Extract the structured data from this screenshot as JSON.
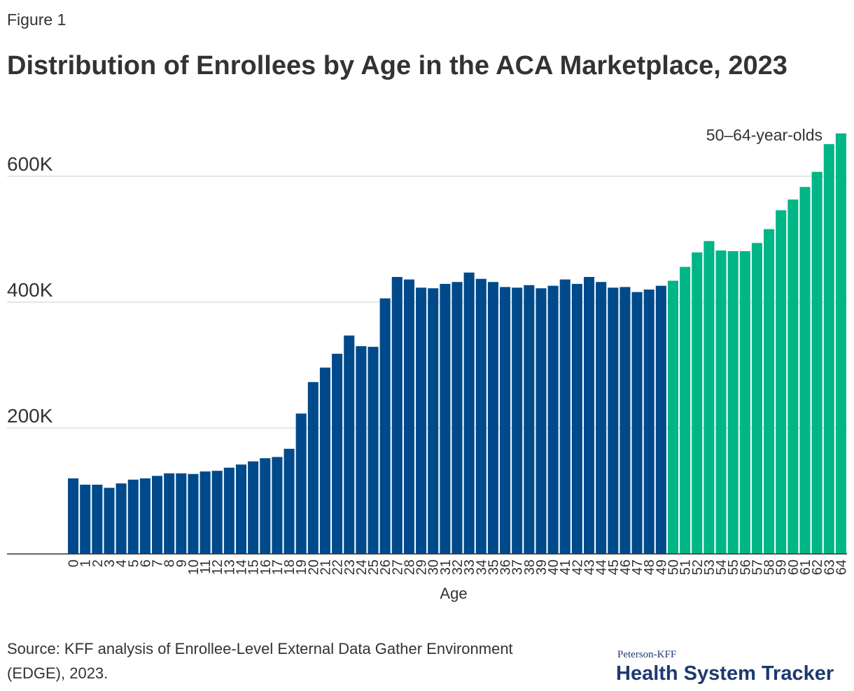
{
  "figure_label": "Figure 1",
  "chart_data": {
    "type": "bar",
    "title": "Distribution of Enrollees by Age in the ACA Marketplace, 2023",
    "xlabel": "Age",
    "annotation": "50–64-year-olds",
    "categories": [
      "0",
      "1",
      "2",
      "3",
      "4",
      "5",
      "6",
      "7",
      "8",
      "9",
      "10",
      "11",
      "12",
      "13",
      "14",
      "15",
      "16",
      "17",
      "18",
      "19",
      "20",
      "21",
      "22",
      "23",
      "24",
      "25",
      "26",
      "27",
      "28",
      "29",
      "30",
      "31",
      "32",
      "33",
      "34",
      "35",
      "36",
      "37",
      "38",
      "39",
      "40",
      "41",
      "42",
      "43",
      "44",
      "45",
      "46",
      "47",
      "48",
      "49",
      "50",
      "51",
      "52",
      "53",
      "54",
      "55",
      "56",
      "57",
      "58",
      "59",
      "60",
      "61",
      "62",
      "63",
      "64"
    ],
    "values": [
      120000,
      110000,
      110000,
      105000,
      112000,
      118000,
      120000,
      124000,
      128000,
      128000,
      127000,
      131000,
      132000,
      137000,
      142000,
      147000,
      152000,
      154000,
      167000,
      223000,
      273000,
      296000,
      318000,
      347000,
      330000,
      329000,
      406000,
      440000,
      436000,
      423000,
      422000,
      429000,
      432000,
      447000,
      437000,
      432000,
      424000,
      423000,
      427000,
      422000,
      426000,
      436000,
      429000,
      440000,
      432000,
      423000,
      424000,
      416000,
      420000,
      426000,
      434000,
      456000,
      479000,
      497000,
      482000,
      481000,
      481000,
      494000,
      516000,
      546000,
      563000,
      583000,
      607000,
      651000,
      668000
    ],
    "colors": [
      "#004a8b",
      "#004a8b",
      "#004a8b",
      "#004a8b",
      "#004a8b",
      "#004a8b",
      "#004a8b",
      "#004a8b",
      "#004a8b",
      "#004a8b",
      "#004a8b",
      "#004a8b",
      "#004a8b",
      "#004a8b",
      "#004a8b",
      "#004a8b",
      "#004a8b",
      "#004a8b",
      "#004a8b",
      "#004a8b",
      "#004a8b",
      "#004a8b",
      "#004a8b",
      "#004a8b",
      "#004a8b",
      "#004a8b",
      "#004a8b",
      "#004a8b",
      "#004a8b",
      "#004a8b",
      "#004a8b",
      "#004a8b",
      "#004a8b",
      "#004a8b",
      "#004a8b",
      "#004a8b",
      "#004a8b",
      "#004a8b",
      "#004a8b",
      "#004a8b",
      "#004a8b",
      "#004a8b",
      "#004a8b",
      "#004a8b",
      "#004a8b",
      "#004a8b",
      "#004a8b",
      "#004a8b",
      "#004a8b",
      "#004a8b",
      "#00b586",
      "#00b586",
      "#00b586",
      "#00b586",
      "#00b586",
      "#00b586",
      "#00b586",
      "#00b586",
      "#00b586",
      "#00b586",
      "#00b586",
      "#00b586",
      "#00b586",
      "#00b586",
      "#00b586"
    ],
    "ylim": [
      0,
      700000
    ],
    "yticks": [
      {
        "value": 200000,
        "label": "200K"
      },
      {
        "value": 400000,
        "label": "400K"
      },
      {
        "value": 600000,
        "label": "600K"
      }
    ],
    "grid": true
  },
  "source": [
    "Source: KFF analysis of Enrollee-Level External Data Gather Environment",
    "(EDGE), 2023."
  ],
  "logo": {
    "top": "Peterson-KFF",
    "main": "Health System Tracker"
  }
}
